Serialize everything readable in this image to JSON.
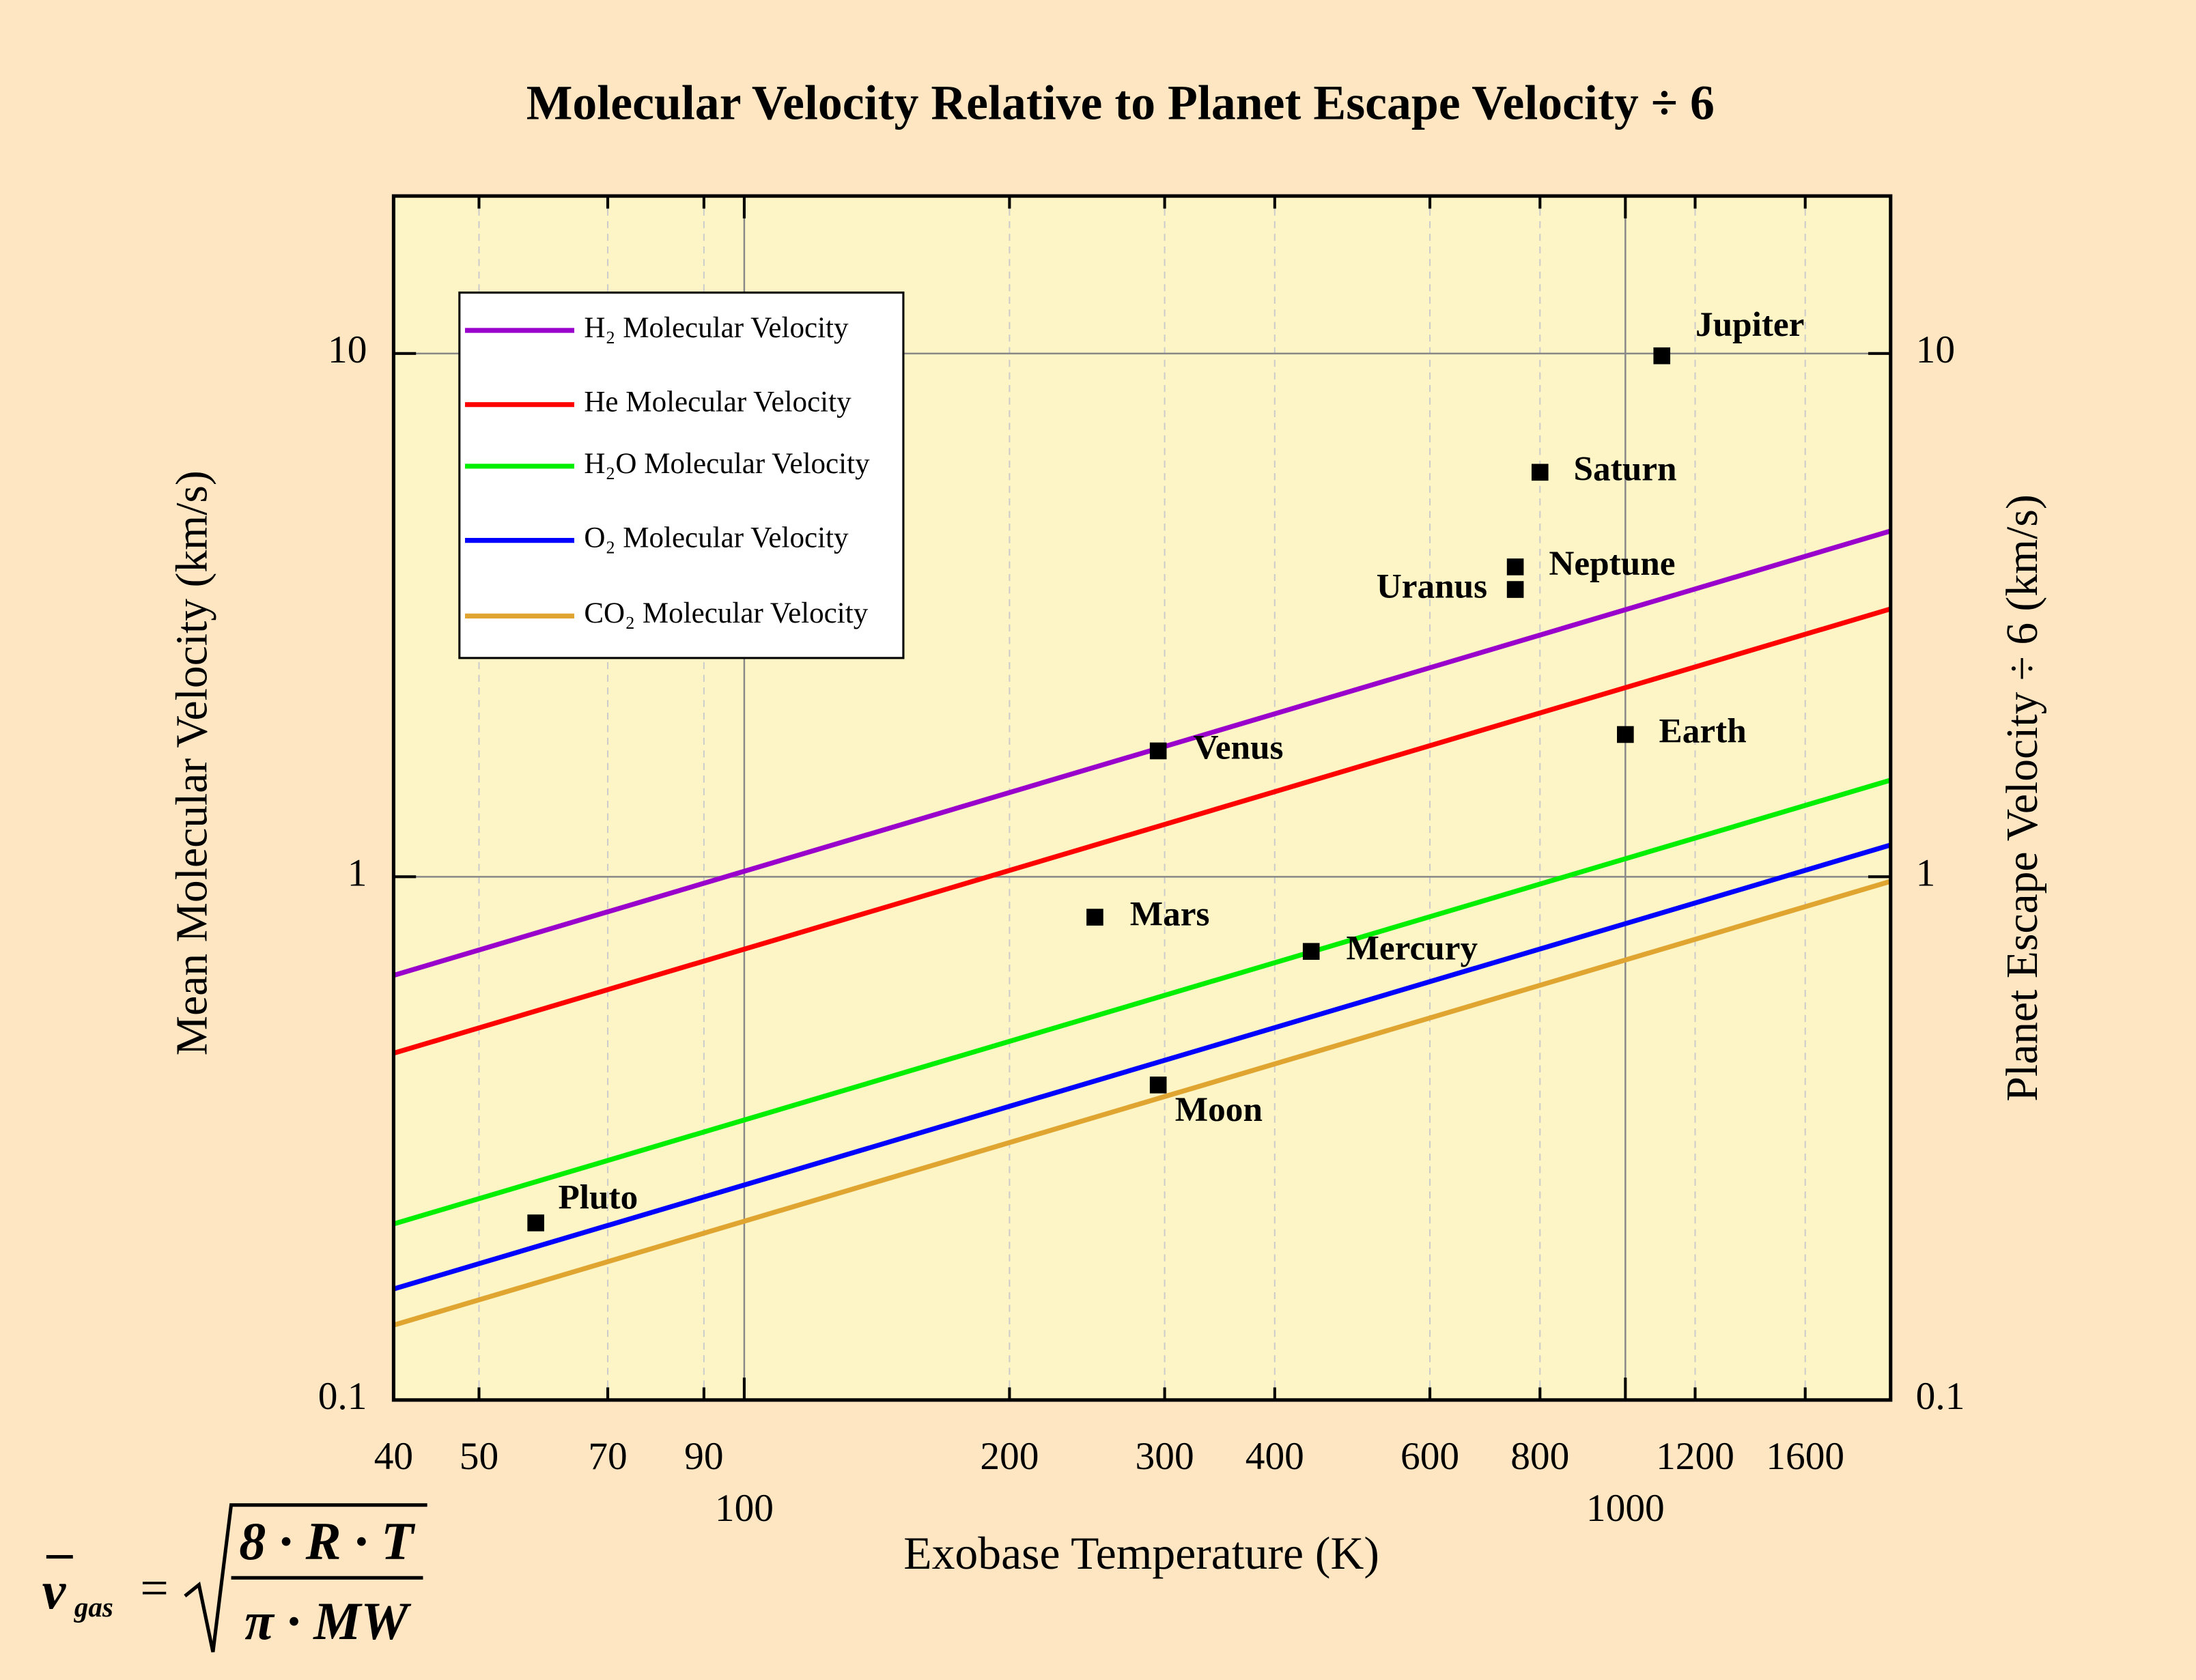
{
  "chart_data": {
    "type": "line",
    "title": "Molecular Velocity Relative to Planet Escape Velocity ÷ 6",
    "x_label": "Exobase Temperature (K)",
    "y_label": "Mean Molecular Velocity (km/s)",
    "y2_label": "Planet Escape Velocity ÷ 6 (km/s)",
    "log_x": true,
    "log_y": true,
    "grid": true,
    "xlim": [
      40,
      2000
    ],
    "xticks": [
      40,
      50,
      70,
      90,
      100,
      200,
      300,
      400,
      600,
      800,
      1000,
      1200,
      1600
    ],
    "ylim": [
      0.1,
      20
    ],
    "yticks": [
      0.1,
      1,
      10
    ],
    "y2lim": [
      0.1,
      20
    ],
    "y2ticks": [
      0.1,
      1,
      10
    ],
    "x": [
      40,
      2000
    ],
    "series": [
      {
        "name": "H₂ Molecular Velocity",
        "color": "#9900cc",
        "values": [
          0.648,
          4.58
        ]
      },
      {
        "name": "He Molecular Velocity",
        "color": "#ff0000",
        "values": [
          0.46,
          3.25
        ]
      },
      {
        "name": "H₂O Molecular Velocity",
        "color": "#00ee00",
        "values": [
          0.217,
          1.53
        ]
      },
      {
        "name": "O₂ Molecular Velocity",
        "color": "#0000ff",
        "values": [
          0.163,
          1.15
        ]
      },
      {
        "name": "CO₂ Molecular Velocity",
        "color": "#e0a530",
        "values": [
          0.139,
          0.98
        ]
      }
    ],
    "planets": {
      "color": "#000000",
      "names": [
        "Jupiter",
        "Saturn",
        "Neptune",
        "Uranus",
        "Earth",
        "Venus",
        "Mars",
        "Mercury",
        "Moon",
        "Pluto"
      ],
      "x": [
        1100,
        800,
        750,
        750,
        1000,
        295,
        250,
        440,
        295,
        58
      ],
      "y": [
        9.9,
        5.93,
        3.91,
        3.54,
        1.87,
        1.74,
        0.837,
        0.72,
        0.4,
        0.218
      ]
    },
    "formula": {
      "lhs": "v",
      "subscript": "gas",
      "equals": "=",
      "numerator": "8 · R · T",
      "denominator": "π · MW"
    }
  }
}
